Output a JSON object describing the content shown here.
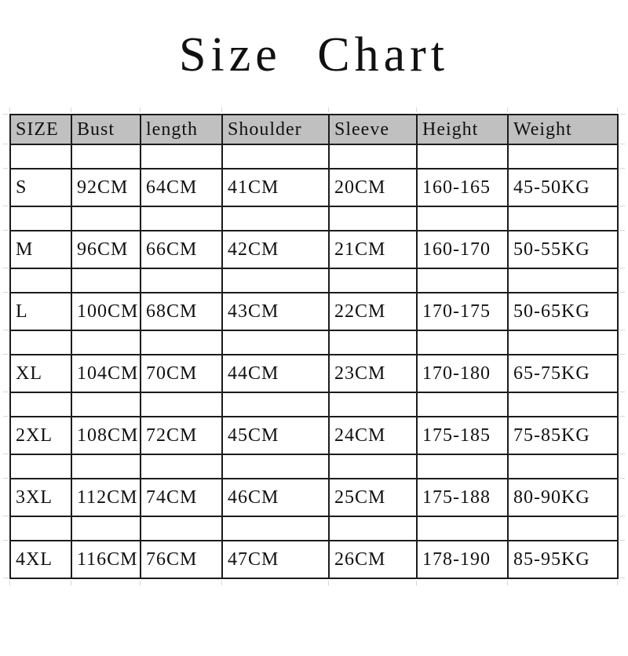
{
  "title": "Size Chart",
  "table": {
    "headers": [
      "SIZE",
      "Bust",
      "length",
      "Shoulder",
      "Sleeve",
      "Height",
      "Weight"
    ],
    "rows": [
      [
        "S",
        "92CM",
        "64CM",
        "41CM",
        "20CM",
        "160-165",
        "45-50KG"
      ],
      [
        "M",
        "96CM",
        "66CM",
        "42CM",
        "21CM",
        "160-170",
        "50-55KG"
      ],
      [
        "L",
        "100CM",
        "68CM",
        "43CM",
        "22CM",
        "170-175",
        "50-65KG"
      ],
      [
        "XL",
        "104CM",
        "70CM",
        "44CM",
        "23CM",
        "170-180",
        "65-75KG"
      ],
      [
        "2XL",
        "108CM",
        "72CM",
        "45CM",
        "24CM",
        "175-185",
        "75-85KG"
      ],
      [
        "3XL",
        "112CM",
        "74CM",
        "46CM",
        "25CM",
        "175-188",
        "80-90KG"
      ],
      [
        "4XL",
        "116CM",
        "76CM",
        "47CM",
        "26CM",
        "178-190",
        "85-95KG"
      ]
    ]
  },
  "chart_data": {
    "type": "table",
    "title": "Size Chart",
    "columns": [
      "SIZE",
      "Bust",
      "length",
      "Shoulder",
      "Sleeve",
      "Height",
      "Weight"
    ],
    "rows": [
      [
        "S",
        "92CM",
        "64CM",
        "41CM",
        "20CM",
        "160-165",
        "45-50KG"
      ],
      [
        "M",
        "96CM",
        "66CM",
        "42CM",
        "21CM",
        "160-170",
        "50-55KG"
      ],
      [
        "L",
        "100CM",
        "68CM",
        "43CM",
        "22CM",
        "170-175",
        "50-65KG"
      ],
      [
        "XL",
        "104CM",
        "70CM",
        "44CM",
        "23CM",
        "170-180",
        "65-75KG"
      ],
      [
        "2XL",
        "108CM",
        "72CM",
        "45CM",
        "24CM",
        "175-185",
        "75-85KG"
      ],
      [
        "3XL",
        "112CM",
        "74CM",
        "46CM",
        "25CM",
        "175-188",
        "80-90KG"
      ],
      [
        "4XL",
        "116CM",
        "76CM",
        "47CM",
        "26CM",
        "178-190",
        "85-95KG"
      ]
    ],
    "layout": {
      "header_filled": true,
      "spacer_rows_between_data": true,
      "grid": true
    }
  },
  "colors": {
    "header_bg": "#c0c0c0",
    "border": "#1c1c1c",
    "text": "#111111"
  }
}
